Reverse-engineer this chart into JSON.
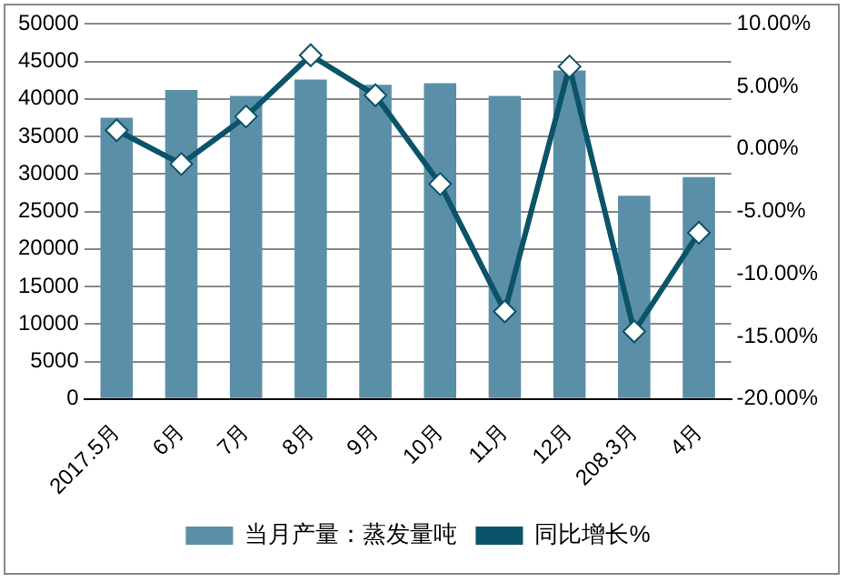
{
  "chart_data": {
    "type": "bar",
    "categories": [
      "2017.5月",
      "6月",
      "7月",
      "8月",
      "9月",
      "10月",
      "11月",
      "12月",
      "208.3月",
      "4月"
    ],
    "series": [
      {
        "name": "当月产量：蒸发量吨",
        "color": "#5b8fa8",
        "values": [
          37500,
          41200,
          40400,
          42600,
          41900,
          42100,
          40400,
          43800,
          27100,
          29600
        ]
      },
      {
        "name": "同比增长%",
        "type": "line",
        "color": "#0b5368",
        "axis": "y2",
        "marker": "diamond",
        "values": [
          1.5,
          -1.2,
          2.6,
          7.5,
          4.3,
          -2.8,
          -13.0,
          6.6,
          -14.6,
          -6.7
        ]
      }
    ],
    "ylim": [
      0,
      50000
    ],
    "yticks": [
      0,
      5000,
      10000,
      15000,
      20000,
      25000,
      30000,
      35000,
      40000,
      45000,
      50000
    ],
    "y2lim": [
      -20,
      10
    ],
    "y2ticks": [
      {
        "value": -20,
        "label": "-20.00%"
      },
      {
        "value": -15,
        "label": "-15.00%"
      },
      {
        "value": -10,
        "label": "-10.00%"
      },
      {
        "value": -5,
        "label": "-5.00%"
      },
      {
        "value": 0,
        "label": "0.00%"
      },
      {
        "value": 5,
        "label": "5.00%"
      },
      {
        "value": 10,
        "label": "10.00%"
      }
    ],
    "grid": "y",
    "legend": "bottom"
  }
}
